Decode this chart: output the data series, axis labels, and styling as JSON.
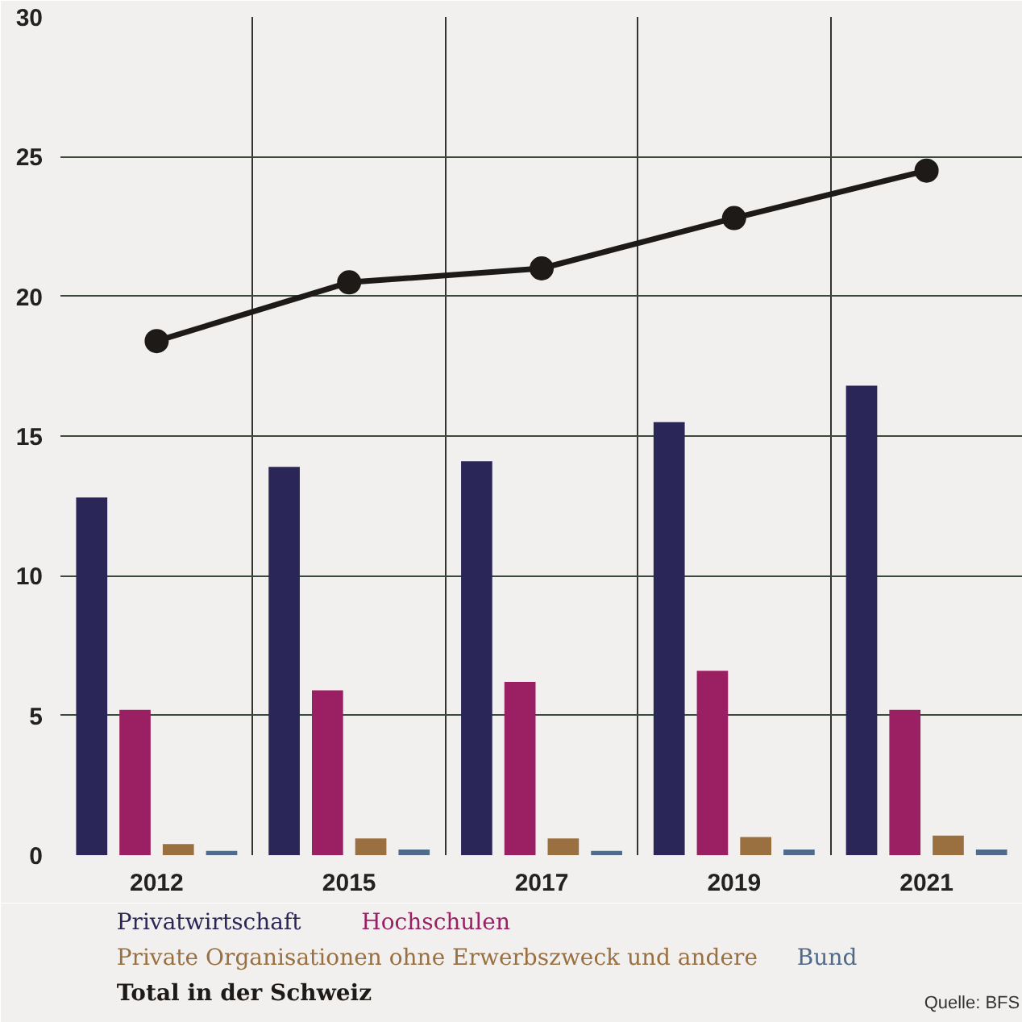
{
  "chart_data": {
    "type": "bar",
    "categories": [
      "2012",
      "2015",
      "2017",
      "2019",
      "2021"
    ],
    "series": [
      {
        "name": "Privatwirtschaft",
        "color": "#2b2658",
        "values": [
          12.8,
          13.9,
          14.1,
          15.5,
          16.8
        ]
      },
      {
        "name": "Hochschulen",
        "color": "#9b1f63",
        "values": [
          5.2,
          5.9,
          6.2,
          6.6,
          5.2
        ]
      },
      {
        "name": "Private Organisationen ohne Erwerbszweck und andere",
        "color": "#9a7040",
        "values": [
          0.4,
          0.6,
          0.6,
          0.65,
          0.7
        ]
      },
      {
        "name": "Bund",
        "color": "#4f6a8a",
        "values": [
          0.15,
          0.2,
          0.15,
          0.2,
          0.2
        ]
      },
      {
        "name": "Total in der Schweiz",
        "type": "line",
        "color": "#1e1a18",
        "marker": "circle",
        "values": [
          18.4,
          20.5,
          21.0,
          22.8,
          24.5
        ]
      }
    ],
    "ylim": [
      0,
      30
    ],
    "yticks": [
      0,
      5,
      10,
      15,
      20,
      25,
      30
    ],
    "grid": true,
    "legend": "bottom",
    "annotations": [
      "Quelle: BFS"
    ]
  }
}
